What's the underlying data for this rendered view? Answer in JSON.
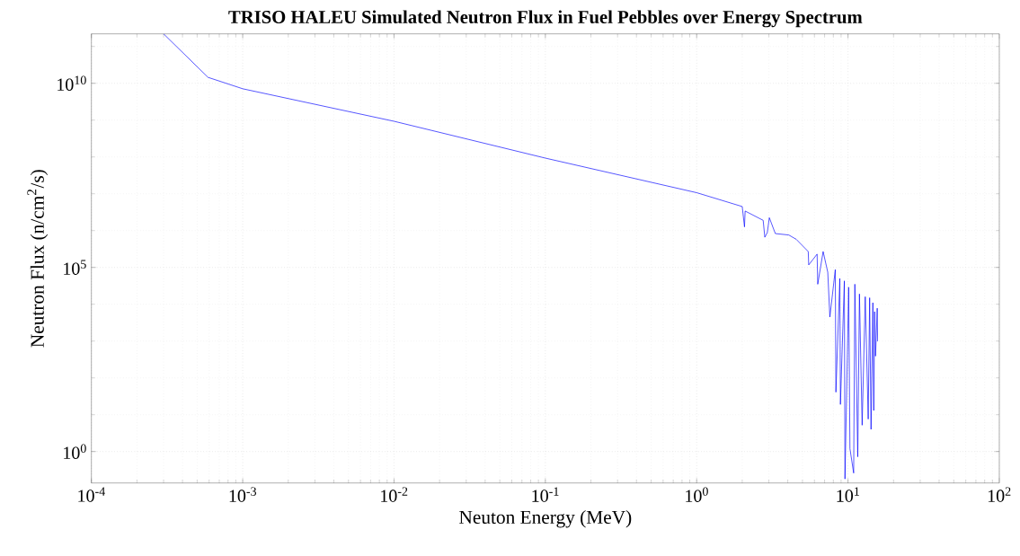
{
  "chart_data": {
    "type": "line",
    "title": "TRISO HALEU Simulated Neutron Flux in Fuel Pebbles over Energy Spectrum",
    "xlabel": "Neuton Energy (MeV)",
    "ylabel": "Neutron Flux (n/cm$^{2}$/s)",
    "log": "xy",
    "grid": true,
    "color": "#0000ff",
    "x": [
      0.0003,
      0.00059,
      0.001,
      0.01,
      0.1,
      1,
      2.0,
      2.07,
      2.09,
      2.75,
      2.82,
      2.93,
      3.02,
      3.31,
      4.06,
      4.55,
      5.46,
      5.5,
      6.25,
      6.31,
      6.85,
      7.35,
      7.59,
      8.24,
      8.32,
      8.83,
      8.91,
      9.46,
      9.55,
      10.1,
      10.3,
      10.9,
      11.1,
      11.6,
      11.9,
      12.4,
      13.0,
      13.6,
      13.9,
      14.2,
      14.6,
      14.8,
      15.0,
      15.2,
      15.6,
      15.7
    ],
    "values": [
      220000000000.0,
      14500000000.0,
      7100000000.0,
      930000000.0,
      93000000.0,
      10700000.0,
      4500000.0,
      1260000.0,
      3400000.0,
      1900000.0,
      660000.0,
      890000.0,
      2240000.0,
      830000.0,
      760000.0,
      580000.0,
      270000.0,
      117000.0,
      230000.0,
      35000.0,
      270000.0,
      74000.0,
      4500.0,
      87000.0,
      41,
      50000.0,
      19,
      43000.0,
      0.18,
      29000.0,
      1.2,
      0.26,
      35000.0,
      0.72,
      19000.0,
      5.2,
      16000.0,
      7.6,
      15000.0,
      4.0,
      11000.0,
      13,
      6300.0,
      390,
      7800.0,
      980
    ],
    "xlim": [
      0.0001,
      100
    ],
    "ylim": [
      0.14,
      220000000000.0
    ],
    "xticks": [
      {
        "value": 0.0001,
        "label": "10$^{-4}$"
      },
      {
        "value": 0.001,
        "label": "10$^{-3}$"
      },
      {
        "value": 0.01,
        "label": "10$^{-2}$"
      },
      {
        "value": 0.1,
        "label": "10$^{-1}$"
      },
      {
        "value": 1,
        "label": "10$^{0}$"
      },
      {
        "value": 10,
        "label": "10$^{1}$"
      },
      {
        "value": 100,
        "label": "10$^{2}$"
      }
    ],
    "yticks": [
      {
        "value": 1,
        "label": "10$^{0}$"
      },
      {
        "value": 100000,
        "label": "10$^{5}$"
      },
      {
        "value": 10000000000,
        "label": "10$^{10}$"
      }
    ]
  }
}
